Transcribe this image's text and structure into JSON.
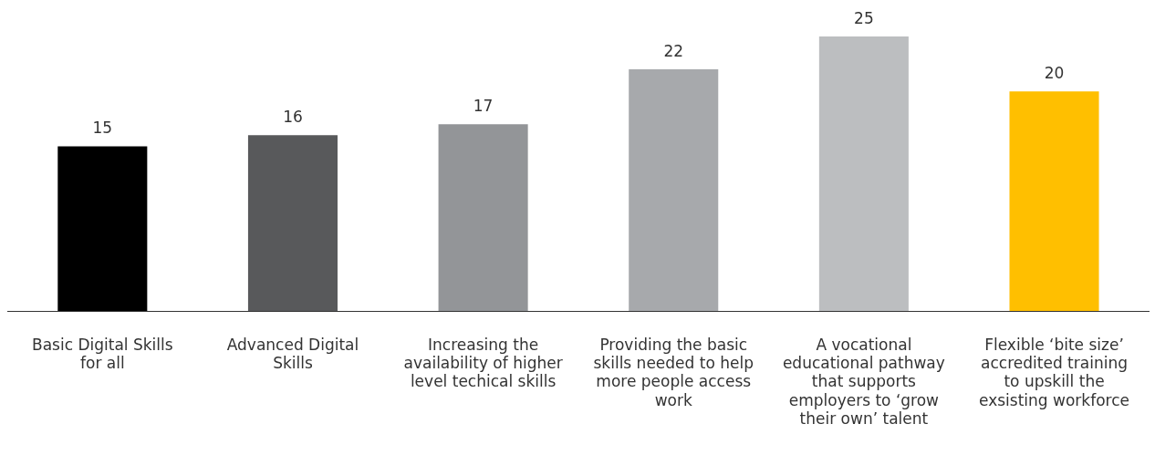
{
  "chart_data": {
    "type": "bar",
    "categories": [
      "Basic Digital Skills for all",
      "Advanced Digital Skills",
      "Increasing the availability of higher level techical skills",
      "Providing the basic skills needed to help more people access work",
      "A vocational educational pathway that supports employers to ‘grow their own’ talent",
      "Flexible ‘bite size’ accredited training to upskill the exsisting workforce"
    ],
    "values": [
      15,
      16,
      17,
      22,
      25,
      20
    ],
    "colors": [
      "#000000",
      "#58595b",
      "#939598",
      "#a7a9ac",
      "#bcbec0",
      "#ffbf00"
    ],
    "data_labels": true,
    "grid": false,
    "legend": false,
    "tick_labels": "x"
  }
}
